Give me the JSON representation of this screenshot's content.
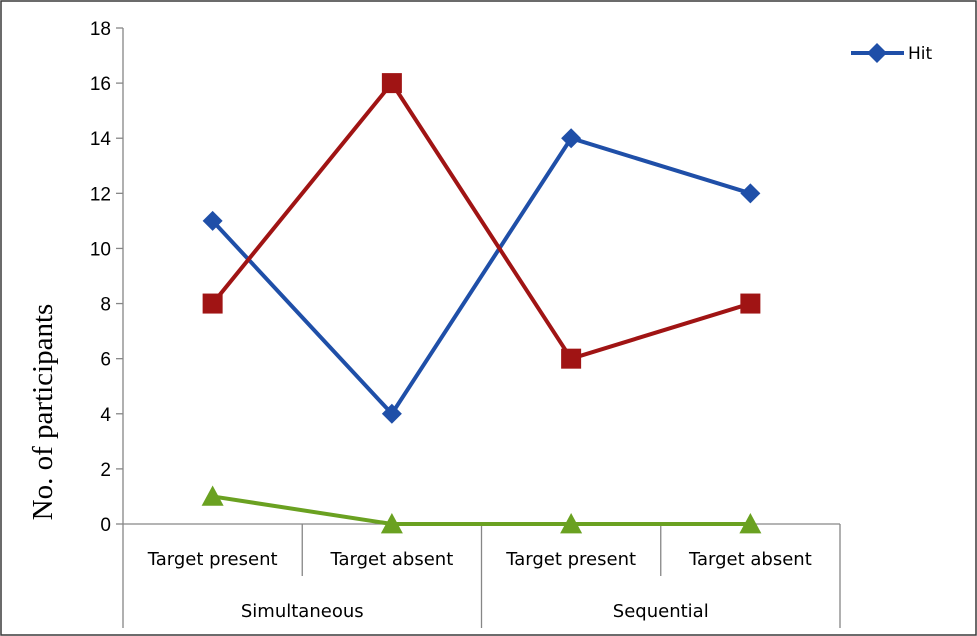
{
  "chart_data": {
    "type": "line",
    "categories": [
      "Target present",
      "Target absent",
      "Target present",
      "Target absent"
    ],
    "groups": [
      {
        "label": "Simultaneous",
        "span": [
          0,
          1
        ]
      },
      {
        "label": "Sequential",
        "span": [
          2,
          3
        ]
      }
    ],
    "series": [
      {
        "name": "Hit",
        "values": [
          11,
          4,
          14,
          12
        ],
        "color": "#1f4fa8",
        "marker": "diamond",
        "in_legend": true
      },
      {
        "values": [
          8,
          16,
          6,
          8
        ],
        "color": "#a01414",
        "marker": "square",
        "in_legend": false
      },
      {
        "values": [
          1,
          0,
          0,
          0
        ],
        "color": "#6aa121",
        "marker": "triangle",
        "in_legend": false
      }
    ],
    "ylabel": "No. of participants",
    "xlabel": "",
    "ylim": [
      0,
      18
    ],
    "yticks": [
      0,
      2,
      4,
      6,
      8,
      10,
      12,
      14,
      16,
      18
    ],
    "grid": false,
    "legend_position": "top-right"
  }
}
